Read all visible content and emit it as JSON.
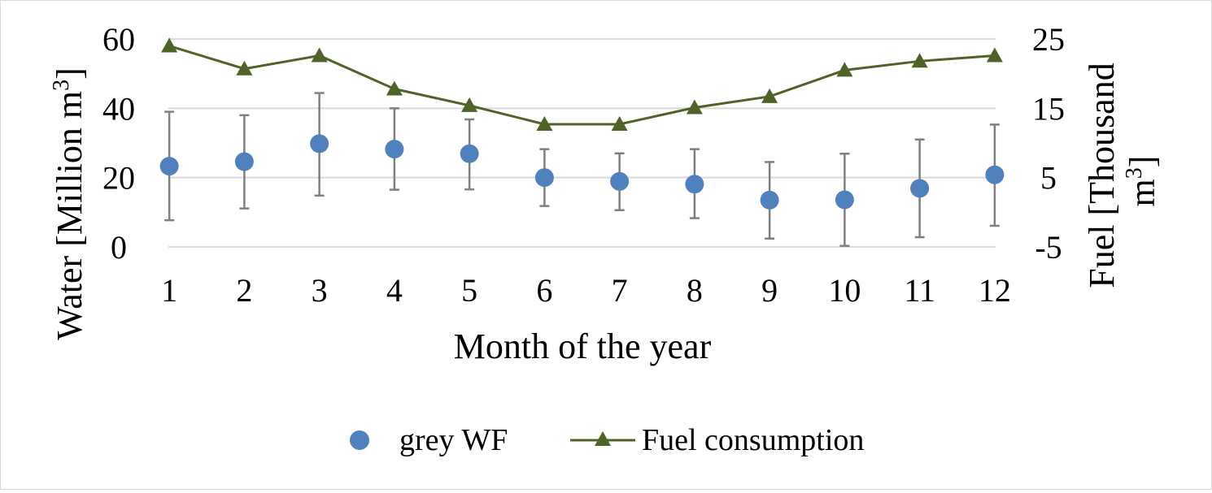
{
  "chart_data": {
    "type": "scatter",
    "xlabel": "Month of the year",
    "ylabel_left": "Water [Million m³]",
    "ylabel_left_parts": {
      "main": "Water [Million m",
      "sup": "3",
      "end": "]"
    },
    "ylabel_right": "Fuel [Thousand m³]",
    "ylabel_right_parts": {
      "line1": "Fuel [Thousand",
      "line2_main": "m",
      "line2_sup": "3",
      "line2_end": "]"
    },
    "categories": [
      "1",
      "2",
      "3",
      "4",
      "5",
      "6",
      "7",
      "8",
      "9",
      "10",
      "11",
      "12"
    ],
    "y_left": {
      "lim": [
        0,
        60
      ],
      "ticks": [
        "0",
        "20",
        "40",
        "60"
      ],
      "tick_values": [
        0,
        20,
        40,
        60
      ]
    },
    "y_right": {
      "lim": [
        -5,
        25
      ],
      "ticks": [
        "-5",
        "5",
        "15",
        "25"
      ],
      "tick_values": [
        -5,
        5,
        15,
        25
      ]
    },
    "grid": true,
    "legend_position": "bottom",
    "series": [
      {
        "name": "grey WF",
        "kind": "scatter",
        "axis": "left",
        "color": "#4f81bd",
        "marker": "circle",
        "values": [
          23.3,
          24.6,
          29.8,
          28.2,
          26.9,
          20.0,
          18.9,
          18.1,
          13.5,
          13.6,
          16.9,
          20.8
        ],
        "error_low": [
          7.7,
          11.1,
          14.8,
          16.5,
          16.6,
          11.8,
          10.6,
          8.3,
          2.4,
          0.3,
          2.8,
          6.1
        ],
        "error_high": [
          39.0,
          38.0,
          44.4,
          40.0,
          36.8,
          28.2,
          27.0,
          28.2,
          24.5,
          26.9,
          31.0,
          35.3
        ]
      },
      {
        "name": "Fuel consumption",
        "kind": "line",
        "axis": "right",
        "color": "#4f6228",
        "marker": "triangle",
        "values": [
          24.0,
          20.7,
          22.6,
          17.8,
          15.4,
          12.7,
          12.7,
          15.1,
          16.7,
          20.5,
          21.8,
          22.6
        ]
      }
    ]
  }
}
